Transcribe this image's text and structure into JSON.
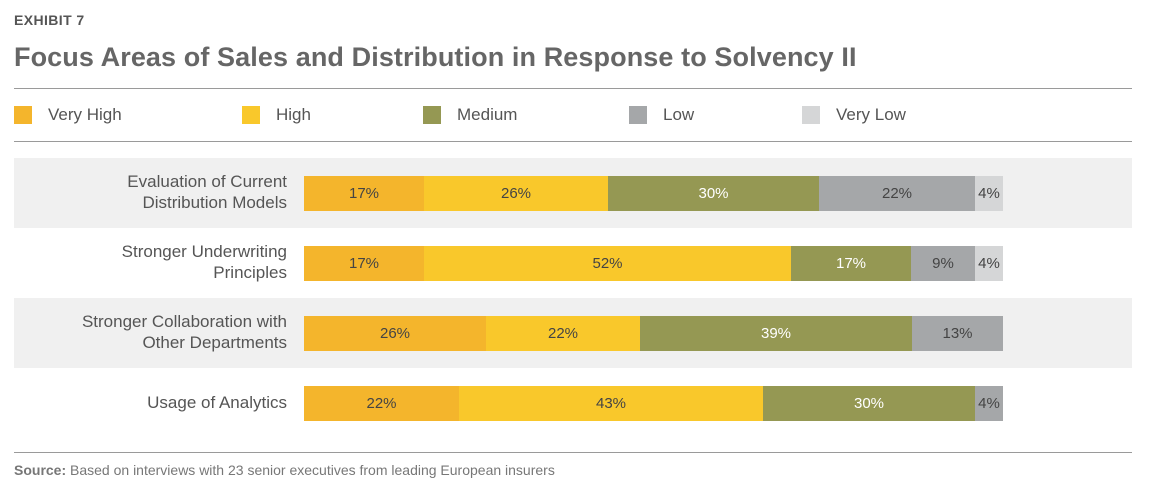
{
  "header": {
    "exhibit": "EXHIBIT 7",
    "title": "Focus Areas of Sales and Distribution in Response to Solvency II"
  },
  "legend": [
    {
      "label": "Very High",
      "color": "#F4B52C"
    },
    {
      "label": "High",
      "color": "#F9C82B"
    },
    {
      "label": "Medium",
      "color": "#959853"
    },
    {
      "label": "Low",
      "color": "#A5A7A9"
    },
    {
      "label": "Very Low",
      "color": "#D5D6D7"
    }
  ],
  "chart_data": {
    "type": "bar",
    "orientation": "horizontal",
    "stacked": true,
    "categories": [
      "Evaluation of Current Distribution Models",
      "Stronger Underwriting Principles",
      "Stronger Collaboration with Other Departments",
      "Usage of Analytics"
    ],
    "category_lines": [
      [
        "Evaluation of Current",
        "Distribution Models"
      ],
      [
        "Stronger Underwriting",
        "Principles"
      ],
      [
        "Stronger Collaboration with",
        "Other Departments"
      ],
      [
        "Usage of Analytics"
      ]
    ],
    "series": [
      {
        "name": "Very High",
        "values": [
          17,
          17,
          26,
          22
        ],
        "labels": [
          "17%",
          "17%",
          "26%",
          "22%"
        ]
      },
      {
        "name": "High",
        "values": [
          26,
          52,
          22,
          43
        ],
        "labels": [
          "26%",
          "52%",
          "22%",
          "43%"
        ]
      },
      {
        "name": "Medium",
        "values": [
          30,
          17,
          39,
          30
        ],
        "labels": [
          "30%",
          "17%",
          "39%",
          "30%"
        ]
      },
      {
        "name": "Low",
        "values": [
          22,
          9,
          13,
          4
        ],
        "labels": [
          "22%",
          "9%",
          "13%",
          "4%"
        ]
      },
      {
        "name": "Very Low",
        "values": [
          4,
          4,
          0,
          0
        ],
        "labels": [
          "4%",
          "4%",
          "",
          ""
        ]
      }
    ],
    "legend_position": "top",
    "grid": false
  },
  "source": {
    "label": "Source:",
    "text": " Based on interviews with 23 senior executives from leading European insurers"
  }
}
